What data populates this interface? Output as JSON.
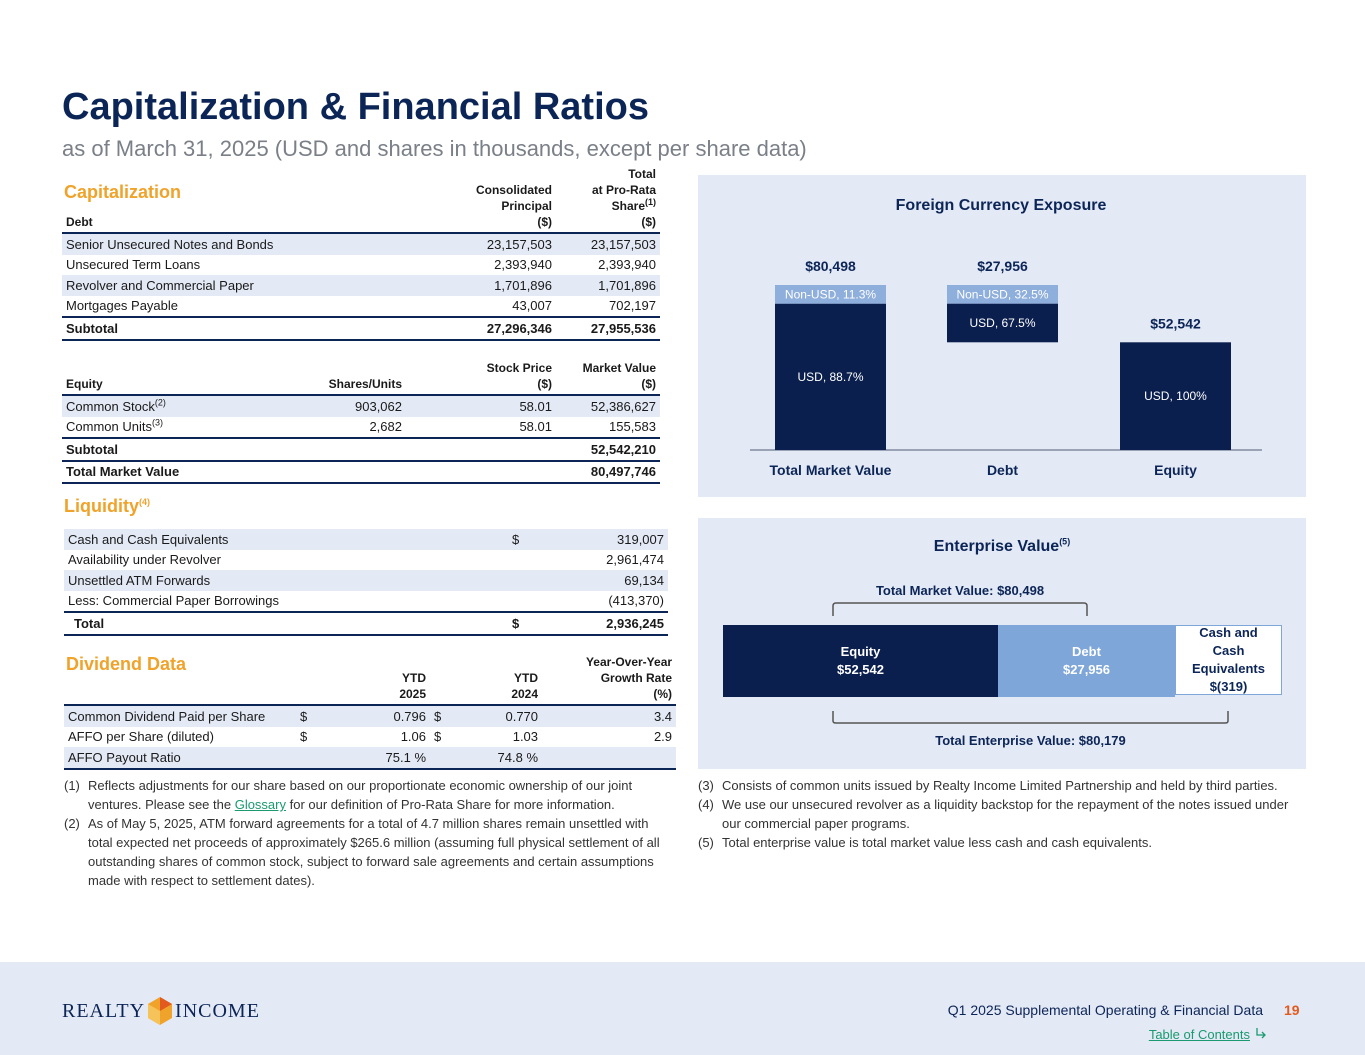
{
  "header": {
    "title": "Capitalization & Financial Ratios",
    "subtitle": "as of March 31, 2025 (USD and shares in thousands, except per share data)"
  },
  "capitalization": {
    "title": "Capitalization",
    "debt": {
      "header": [
        [
          "Debt"
        ],
        [
          "Consolidated",
          "Principal",
          "($)"
        ],
        [
          "Total",
          "at Pro-Rata",
          {
            "text": "Share",
            "note": "(1)"
          },
          "($)"
        ]
      ],
      "rows": [
        [
          "Senior Unsecured Notes and Bonds",
          "23,157,503",
          "23,157,503"
        ],
        [
          "Unsecured Term Loans",
          "2,393,940",
          "2,393,940"
        ],
        [
          "Revolver and Commercial Paper",
          "1,701,896",
          "1,701,896"
        ],
        [
          "Mortgages Payable",
          "43,007",
          "702,197"
        ],
        [
          "Subtotal",
          "27,296,346",
          "27,955,536"
        ]
      ]
    },
    "equity": {
      "header": [
        [
          "Equity"
        ],
        [
          "Shares/Units"
        ],
        [
          "Stock Price",
          "($)"
        ],
        [
          "Market Value",
          "($)"
        ]
      ],
      "rows": [
        [
          {
            "text": "Common Stock",
            "note": "(2)"
          },
          "903,062",
          "58.01",
          "52,386,627"
        ],
        [
          {
            "text": "Common Units",
            "note": "(3)"
          },
          "2,682",
          "58.01",
          "155,583"
        ],
        [
          "Subtotal",
          null,
          null,
          "52,542,210"
        ],
        [
          "Total Market Value",
          null,
          null,
          "80,497,746"
        ]
      ]
    }
  },
  "liquidity": {
    "title": "Liquidity",
    "note": "(4)",
    "rows": [
      [
        "Cash and Cash Equivalents",
        "$",
        "319,007"
      ],
      [
        "Availability under Revolver",
        null,
        "2,961,474"
      ],
      [
        "Unsettled ATM Forwards",
        null,
        "69,134"
      ],
      [
        "Less: Commercial Paper Borrowings",
        null,
        "(413,370)"
      ],
      [
        "Total",
        "$",
        "2,936,245"
      ]
    ]
  },
  "dividend": {
    "title": "Dividend Data",
    "header": [
      [
        "YTD",
        "2025"
      ],
      [
        "YTD",
        "2024"
      ],
      [
        "Year-Over-Year",
        "Growth Rate",
        "(%)"
      ]
    ],
    "rows": [
      [
        "Common Dividend Paid per Share",
        "$",
        "0.796",
        "$",
        "0.770",
        "3.4"
      ],
      [
        "AFFO per Share (diluted)",
        "$",
        "1.06",
        "$",
        "1.03",
        "2.9"
      ],
      [
        "AFFO Payout Ratio",
        null,
        "75.1 %",
        null,
        "74.8 %",
        null
      ]
    ]
  },
  "fx_chart": {
    "type": "bar",
    "title": "Foreign Currency Exposure",
    "categories": [
      "Total Market Value",
      "Debt",
      "Equity"
    ],
    "totals": {
      "values": [
        80498,
        27956,
        52542
      ],
      "value_labels": [
        "$80,498",
        "$27,956",
        "$52,542"
      ]
    },
    "series": [
      {
        "color": "#0b1f4e",
        "values": [
          88.7,
          67.5,
          100
        ],
        "value_labels": [
          "USD, 88.7%",
          "USD, 67.5%",
          "USD, 100%"
        ]
      },
      {
        "color": "#8eaedb",
        "values": [
          11.3,
          32.5,
          null
        ],
        "value_labels": [
          "Non-USD, 11.3%",
          "Non-USD, 32.5%",
          null
        ]
      }
    ]
  },
  "enterprise_value": {
    "title": "Enterprise Value",
    "note": "(5)",
    "market_label": "Total Market Value: $80,498",
    "boxes": [
      {
        "label": "Equity",
        "value": "$52,542"
      },
      {
        "label": "Debt",
        "value": "$27,956"
      },
      {
        "label": "Cash and Cash Equivalents",
        "value": "$(319)"
      }
    ],
    "total_label": "Total Enterprise Value: $80,179"
  },
  "footnotes_left": [
    {
      "number": "(1)",
      "before": "Reflects adjustments for our share based on our proportionate economic ownership of our joint ventures. Please see the ",
      "link": "Glossary",
      "after": " for our definition of Pro-Rata Share for more information."
    },
    {
      "number": "(2)",
      "text": "As of May 5, 2025, ATM forward agreements for a total of 4.7 million shares remain unsettled with total expected net proceeds of approximately $265.6 million (assuming full physical settlement of all outstanding shares of common stock, subject to forward sale agreements and certain assumptions made with respect to settlement dates)."
    }
  ],
  "footnotes_right": [
    {
      "number": "(3)",
      "text": "Consists of common units issued by Realty Income Limited Partnership and held by third parties."
    },
    {
      "number": "(4)",
      "text": "We use our unsecured revolver as a liquidity backstop for the repayment of the notes issued under our commercial paper programs."
    },
    {
      "number": "(5)",
      "text": "Total enterprise value is total market value less cash and cash equivalents."
    }
  ],
  "footer": {
    "logo_left": "REALTY",
    "logo_right": "INCOME",
    "report": "Q1 2025 Supplemental Operating & Financial Data",
    "page": "19",
    "toc": "Table of Contents"
  }
}
